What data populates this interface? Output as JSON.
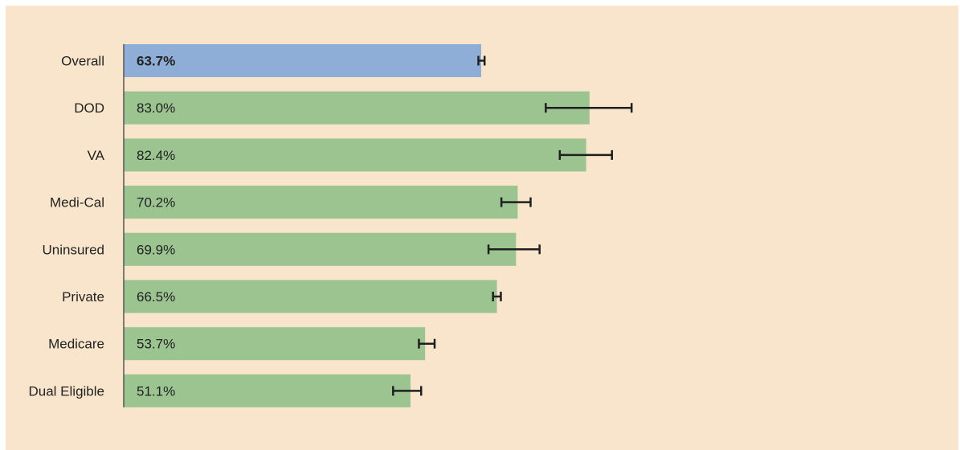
{
  "chart_data": {
    "type": "bar",
    "orientation": "horizontal",
    "categories": [
      "Overall",
      "DOD",
      "VA",
      "Medi-Cal",
      "Uninsured",
      "Private",
      "Medicare",
      "Dual Eligible"
    ],
    "values": [
      63.7,
      83.0,
      82.4,
      70.2,
      69.9,
      66.5,
      53.7,
      51.1
    ],
    "value_labels": [
      "63.7%",
      "83.0%",
      "82.4%",
      "70.2%",
      "69.9%",
      "66.5%",
      "53.7%",
      "51.1%"
    ],
    "error_bars": [
      [
        63.2,
        64.3
      ],
      [
        75.2,
        90.5
      ],
      [
        77.7,
        87.0
      ],
      [
        67.3,
        72.5
      ],
      [
        65.0,
        74.1
      ],
      [
        65.8,
        67.2
      ],
      [
        52.6,
        55.4
      ],
      [
        48.0,
        53.0
      ]
    ],
    "xlim": [
      0,
      100
    ],
    "grid": false,
    "highlight_index": 0,
    "colors": {
      "highlight": "#8eaed8",
      "bar": "#9bc490",
      "error_bar": "#1f1f1f",
      "axis": "#555555",
      "background": "#f8e5cb"
    }
  }
}
